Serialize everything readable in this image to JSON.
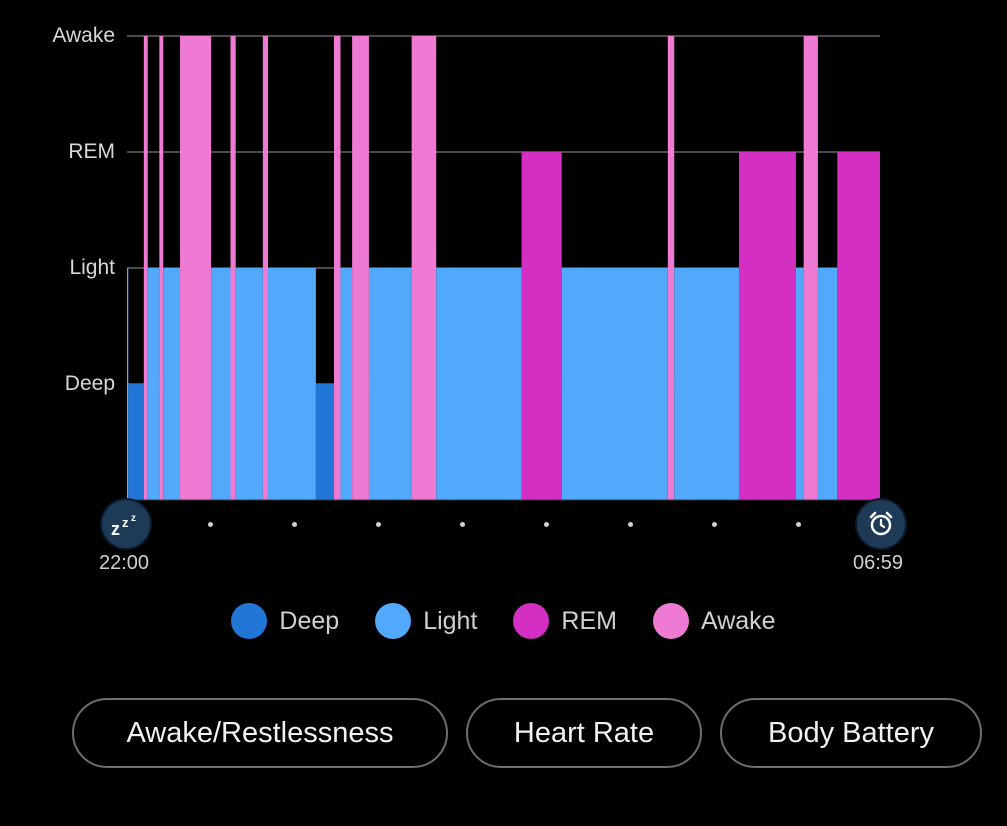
{
  "chart_data": {
    "type": "area",
    "title": "",
    "x_start": "22:00",
    "x_end": "06:59",
    "y_levels": [
      "Deep",
      "Light",
      "REM",
      "Awake"
    ],
    "colors": {
      "Deep": "#2176d6",
      "Light": "#52a8fb",
      "REM": "#d42fc3",
      "Awake": "#ef7ad3"
    },
    "grid": true,
    "legend_position": "bottom-center",
    "segments": [
      {
        "start": "22:00",
        "end": "22:01",
        "stage": "Light"
      },
      {
        "start": "22:01",
        "end": "22:13",
        "stage": "Deep"
      },
      {
        "start": "22:13",
        "end": "22:16",
        "stage": "Awake"
      },
      {
        "start": "22:16",
        "end": "22:25",
        "stage": "Light"
      },
      {
        "start": "22:25",
        "end": "22:28",
        "stage": "Awake"
      },
      {
        "start": "22:28",
        "end": "22:41",
        "stage": "Light"
      },
      {
        "start": "22:41",
        "end": "23:05",
        "stage": "Awake"
      },
      {
        "start": "23:05",
        "end": "23:20",
        "stage": "Light"
      },
      {
        "start": "23:20",
        "end": "23:24",
        "stage": "Awake"
      },
      {
        "start": "23:24",
        "end": "23:45",
        "stage": "Light"
      },
      {
        "start": "23:45",
        "end": "23:49",
        "stage": "Awake"
      },
      {
        "start": "23:49",
        "end": "00:26",
        "stage": "Light"
      },
      {
        "start": "00:26",
        "end": "00:40",
        "stage": "Deep"
      },
      {
        "start": "00:40",
        "end": "00:45",
        "stage": "Awake"
      },
      {
        "start": "00:45",
        "end": "00:54",
        "stage": "Light"
      },
      {
        "start": "00:54",
        "end": "01:07",
        "stage": "Awake"
      },
      {
        "start": "01:07",
        "end": "01:40",
        "stage": "Light"
      },
      {
        "start": "01:40",
        "end": "01:59",
        "stage": "Awake"
      },
      {
        "start": "01:59",
        "end": "03:05",
        "stage": "Light"
      },
      {
        "start": "03:05",
        "end": "03:36",
        "stage": "REM"
      },
      {
        "start": "03:36",
        "end": "04:58",
        "stage": "Light"
      },
      {
        "start": "04:58",
        "end": "05:03",
        "stage": "Awake"
      },
      {
        "start": "05:03",
        "end": "05:53",
        "stage": "Light"
      },
      {
        "start": "05:53",
        "end": "06:37",
        "stage": "REM"
      },
      {
        "start": "06:37",
        "end": "06:43",
        "stage": "Light"
      },
      {
        "start": "06:43",
        "end": "06:54",
        "stage": "Awake"
      },
      {
        "start": "06:54",
        "end": "07:09",
        "stage": "Light"
      },
      {
        "start": "07:09",
        "end": "07:42",
        "stage": "REM"
      }
    ]
  },
  "markers": {
    "start_icon": "sleep-zzz-icon",
    "end_icon": "alarm-clock-icon"
  },
  "legend": [
    {
      "label": "Deep",
      "color": "#2176d6"
    },
    {
      "label": "Light",
      "color": "#52a8fb"
    },
    {
      "label": "REM",
      "color": "#d42fc3"
    },
    {
      "label": "Awake",
      "color": "#ef7ad3"
    }
  ],
  "buttons": {
    "awake": "Awake/Restlessness",
    "heart_rate": "Heart Rate",
    "body_battery": "Body Battery"
  }
}
